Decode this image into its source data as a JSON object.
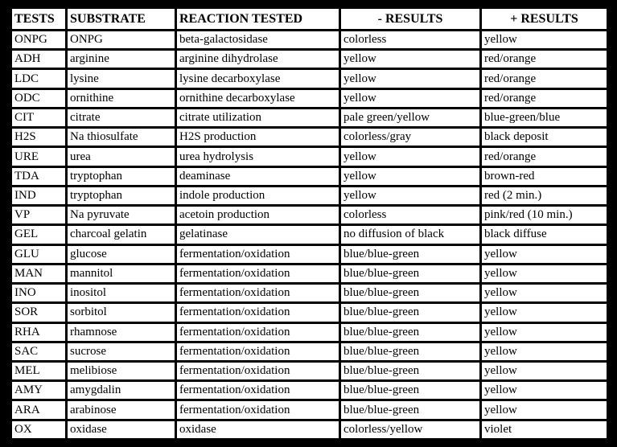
{
  "table": {
    "headers": [
      "TESTS",
      "SUBSTRATE",
      "REACTION TESTED",
      "- RESULTS",
      "+  RESULTS"
    ],
    "rows": [
      [
        "ONPG",
        " ONPG",
        "beta-galactosidase",
        "colorless",
        "yellow"
      ],
      [
        "ADH",
        "arginine",
        "arginine dihydrolase",
        "yellow",
        "red/orange"
      ],
      [
        "LDC",
        "lysine",
        "lysine decarboxylase",
        "yellow",
        "red/orange"
      ],
      [
        "ODC",
        "ornithine",
        "ornithine decarboxylase",
        "yellow",
        "red/orange"
      ],
      [
        "CIT",
        "citrate",
        "citrate  utilization",
        "pale green/yellow",
        "blue-green/blue"
      ],
      [
        "H2S",
        "Na thiosulfate",
        "H2S production",
        "colorless/gray",
        "black deposit"
      ],
      [
        "URE",
        "urea",
        "urea hydrolysis",
        "yellow",
        "red/orange"
      ],
      [
        "TDA",
        "tryptophan",
        "deaminase",
        "yellow",
        "brown-red"
      ],
      [
        "IND",
        "tryptophan",
        "indole production",
        "yellow",
        "red (2 min.)"
      ],
      [
        "VP",
        "Na pyruvate",
        "acetoin production",
        "colorless",
        "pink/red (10 min.)"
      ],
      [
        "GEL",
        "charcoal gelatin",
        "gelatinase",
        "no diffusion of black",
        "black diffuse"
      ],
      [
        "GLU",
        "glucose",
        "fermentation/oxidation",
        "blue/blue-green",
        "yellow"
      ],
      [
        "MAN",
        "mannitol",
        "fermentation/oxidation",
        "blue/blue-green",
        "yellow"
      ],
      [
        "INO",
        "inositol",
        "fermentation/oxidation",
        "blue/blue-green",
        "yellow"
      ],
      [
        "SOR",
        "sorbitol",
        "fermentation/oxidation",
        "blue/blue-green",
        "yellow"
      ],
      [
        "RHA",
        "rhamnose",
        "fermentation/oxidation",
        "blue/blue-green",
        "yellow"
      ],
      [
        "SAC",
        "sucrose",
        "fermentation/oxidation",
        "blue/blue-green",
        "yellow"
      ],
      [
        "MEL",
        "melibiose",
        "fermentation/oxidation",
        "blue/blue-green",
        "yellow"
      ],
      [
        "AMY",
        "amygdalin",
        "fermentation/oxidation",
        "blue/blue-green",
        "yellow"
      ],
      [
        "ARA",
        "arabinose",
        "fermentation/oxidation",
        "blue/blue-green",
        "yellow"
      ],
      [
        "OX",
        "oxidase",
        "oxidase",
        "colorless/yellow",
        "violet"
      ]
    ]
  }
}
